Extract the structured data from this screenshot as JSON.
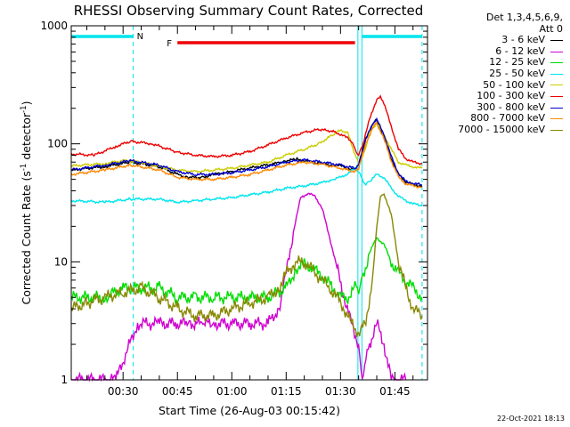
{
  "chart_data": {
    "type": "line",
    "title": "RHESSI Observing Summary Count Rates, Corrected",
    "xlabel": "Start Time (26-Aug-03 00:15:42)",
    "ylabel": "Corrected Count Rate (s",
    "ylabel_sup1": "-1",
    "ylabel_mid": " detector",
    "ylabel_sup2": "-1",
    "ylabel_end": ")",
    "yscale": "log",
    "ylim": [
      1,
      1000
    ],
    "xlim": [
      15.7,
      114
    ],
    "x_unit": "minutes after 00:00 UT",
    "y_ticks": [
      {
        "value": 1,
        "label": "1"
      },
      {
        "value": 10,
        "label": "10"
      },
      {
        "value": 100,
        "label": "100"
      },
      {
        "value": 1000,
        "label": "1000"
      }
    ],
    "x_ticks": [
      {
        "value": 30,
        "label": "00:30"
      },
      {
        "value": 45,
        "label": "00:45"
      },
      {
        "value": 60,
        "label": "01:00"
      },
      {
        "value": 75,
        "label": "01:15"
      },
      {
        "value": 90,
        "label": "01:30"
      },
      {
        "value": 105,
        "label": "01:45"
      }
    ],
    "annotations": {
      "night_label": "N",
      "flare_label": "F",
      "night_color": "#00e5ee",
      "flare_color": "#ee0000",
      "night_bars": [
        [
          15.7,
          32.8
        ],
        [
          95.9,
          112.5
        ]
      ],
      "flare_bar": [
        45.0,
        94.0
      ],
      "dashed_lines": [
        32.8,
        112.5
      ],
      "solid_lines": [
        94.8,
        95.9
      ]
    },
    "legend_header": [
      "Det 1,3,4,5,6,9,",
      "Att 0"
    ],
    "series": [
      {
        "name": "3 - 6 keV",
        "color": "#000000",
        "x": [
          15.7,
          25,
          32,
          40,
          45,
          48,
          52,
          55,
          60,
          62,
          67,
          72,
          75,
          78,
          80,
          82,
          85,
          87,
          90,
          92,
          94,
          95,
          97,
          99,
          100,
          102,
          104,
          106,
          108,
          110,
          112.5
        ],
        "y": [
          60,
          64,
          70,
          64,
          55,
          52,
          52,
          55,
          58,
          60,
          64,
          68,
          72,
          74,
          72,
          70,
          68,
          66,
          65,
          62,
          60,
          68,
          110,
          150,
          160,
          110,
          75,
          55,
          48,
          45,
          44
        ]
      },
      {
        "name": "6 - 12 keV",
        "color": "#d000d0",
        "x": [
          15.7,
          28,
          34,
          40,
          45,
          48,
          52,
          55,
          60,
          65,
          70,
          73,
          75,
          77,
          79,
          81,
          83,
          85,
          87,
          89,
          91,
          93,
          95,
          96,
          97,
          98,
          100,
          102,
          104,
          106,
          108
        ],
        "y": [
          1,
          1,
          3,
          3,
          3,
          3,
          3,
          3,
          3,
          3,
          3,
          4,
          8,
          18,
          35,
          38,
          36,
          28,
          16,
          9,
          5,
          3,
          2,
          1,
          1.5,
          2,
          3,
          2,
          1,
          1,
          1
        ]
      },
      {
        "name": "12 - 25 keV",
        "color": "#00dd00",
        "x": [
          15.7,
          25,
          30,
          35,
          40,
          45,
          50,
          55,
          60,
          65,
          70,
          75,
          78,
          80,
          82,
          84,
          86,
          88,
          90,
          92,
          94,
          95,
          96,
          98,
          100,
          102,
          104,
          106,
          108,
          110,
          112.5
        ],
        "y": [
          5,
          5,
          6,
          6,
          6,
          5,
          5,
          5,
          5,
          5,
          5,
          6,
          9,
          9.5,
          9,
          8,
          7,
          6,
          5,
          5,
          6,
          6,
          7,
          12,
          16,
          14,
          10,
          8,
          7,
          6,
          5
        ]
      },
      {
        "name": "25 - 50 keV",
        "color": "#00e5ee",
        "x": [
          15.7,
          25,
          32,
          40,
          45,
          50,
          55,
          60,
          65,
          70,
          75,
          80,
          85,
          88,
          90,
          92,
          94,
          95,
          96,
          97,
          98,
          100,
          102,
          104,
          106,
          108,
          110,
          112.5
        ],
        "y": [
          33,
          32,
          34,
          34,
          32,
          33,
          34,
          35,
          37,
          39,
          42,
          44,
          47,
          50,
          52,
          56,
          62,
          58,
          50,
          45,
          48,
          55,
          52,
          42,
          36,
          33,
          31,
          30
        ]
      },
      {
        "name": "50 - 100 keV",
        "color": "#cccc00",
        "x": [
          15.7,
          25,
          30,
          35,
          40,
          45,
          50,
          55,
          60,
          65,
          70,
          75,
          80,
          84,
          88,
          90,
          92,
          93,
          94,
          95,
          96,
          97,
          98,
          100,
          102,
          104,
          106,
          108,
          110,
          112.5
        ],
        "y": [
          65,
          68,
          72,
          70,
          64,
          60,
          58,
          60,
          62,
          66,
          70,
          80,
          90,
          100,
          120,
          130,
          125,
          100,
          80,
          70,
          75,
          95,
          125,
          150,
          120,
          90,
          70,
          66,
          64,
          62
        ]
      },
      {
        "name": "100 - 300 keV",
        "color": "#ee0000",
        "x": [
          15.7,
          22,
          28,
          32,
          38,
          45,
          50,
          55,
          60,
          65,
          70,
          75,
          80,
          84,
          88,
          90,
          92,
          93,
          94,
          95,
          96,
          98,
          100,
          101,
          102,
          104,
          106,
          108,
          110,
          112.5
        ],
        "y": [
          82,
          80,
          95,
          105,
          100,
          85,
          80,
          78,
          80,
          86,
          98,
          112,
          125,
          132,
          128,
          120,
          112,
          105,
          90,
          80,
          95,
          160,
          240,
          250,
          220,
          140,
          90,
          75,
          70,
          68
        ]
      },
      {
        "name": "300 - 800 keV",
        "color": "#0000cc",
        "x": [
          15.7,
          25,
          32,
          40,
          45,
          50,
          55,
          60,
          65,
          70,
          75,
          80,
          85,
          90,
          94,
          95,
          97,
          99,
          100,
          102,
          104,
          106,
          108,
          110,
          112.5
        ],
        "y": [
          60,
          66,
          72,
          66,
          58,
          55,
          55,
          57,
          60,
          64,
          70,
          73,
          70,
          66,
          62,
          66,
          110,
          150,
          160,
          120,
          78,
          56,
          48,
          46,
          45
        ]
      },
      {
        "name": "800 - 7000 keV",
        "color": "#ff8800",
        "x": [
          15.7,
          25,
          32,
          40,
          45,
          50,
          55,
          60,
          65,
          70,
          75,
          80,
          85,
          90,
          94,
          95,
          97,
          99,
          100,
          102,
          104,
          106,
          108,
          110,
          112.5
        ],
        "y": [
          55,
          60,
          66,
          60,
          52,
          50,
          50,
          52,
          55,
          60,
          66,
          70,
          67,
          62,
          58,
          62,
          100,
          140,
          150,
          110,
          72,
          52,
          46,
          44,
          43
        ]
      },
      {
        "name": "7000 - 15000 keV",
        "color": "#888800",
        "x": [
          15.7,
          20,
          25,
          30,
          35,
          40,
          45,
          50,
          55,
          60,
          65,
          70,
          73,
          75,
          77,
          79,
          81,
          83,
          85,
          87,
          89,
          91,
          93,
          95,
          97,
          99,
          100,
          101,
          102,
          104,
          106,
          108,
          110,
          112.5
        ],
        "y": [
          4,
          4.5,
          5,
          5.5,
          6,
          5,
          4,
          3.5,
          3.5,
          4,
          4.5,
          5,
          6,
          8,
          9.5,
          10,
          9.5,
          8,
          7,
          6,
          5,
          4,
          3,
          2.5,
          3,
          8,
          20,
          35,
          38,
          25,
          10,
          6,
          4,
          3.5
        ]
      }
    ],
    "footer_stamp": "22-Oct-2021 18:13"
  }
}
